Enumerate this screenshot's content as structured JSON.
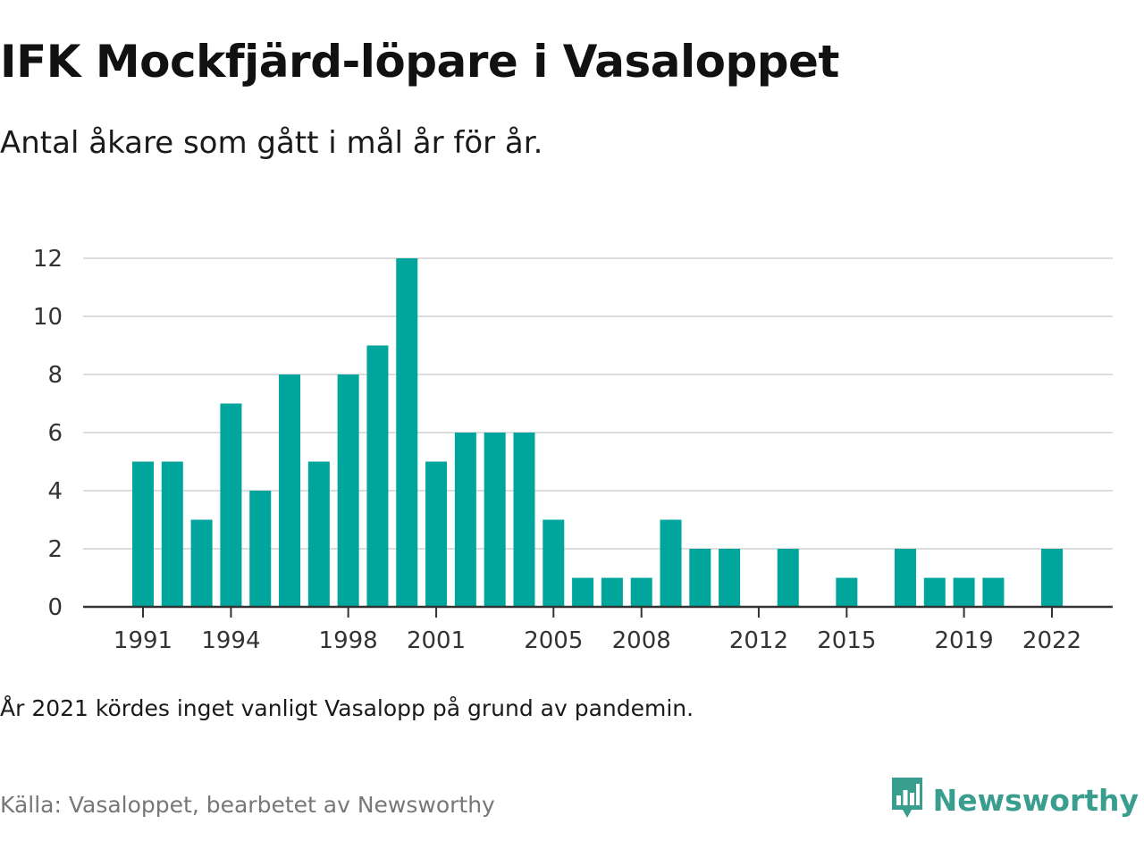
{
  "title": "IFK Mockfjärd-löpare i Vasaloppet",
  "subtitle": "Antal åkare som gått i mål år för år.",
  "note": "År 2021 kördes inget vanligt Vasalopp på grund av pandemin.",
  "source": "Källa: Vasaloppet, bearbetet av Newsworthy",
  "logo": {
    "text": "Newsworthy",
    "icon": "bar-chart-speech-bubble-icon",
    "color": "#3a9e8f"
  },
  "colors": {
    "bar": "#00a69c",
    "grid": "#dddddd",
    "axis": "#333333"
  },
  "chart_data": {
    "type": "bar",
    "x": [
      1991,
      1992,
      1993,
      1994,
      1995,
      1996,
      1997,
      1998,
      1999,
      2000,
      2001,
      2002,
      2003,
      2004,
      2005,
      2006,
      2007,
      2008,
      2009,
      2010,
      2011,
      2012,
      2013,
      2014,
      2015,
      2016,
      2017,
      2018,
      2019,
      2020,
      2021,
      2022
    ],
    "values": [
      5,
      5,
      3,
      7,
      4,
      8,
      5,
      8,
      9,
      12,
      5,
      6,
      6,
      6,
      3,
      1,
      1,
      1,
      3,
      2,
      2,
      0,
      2,
      0,
      1,
      0,
      2,
      1,
      1,
      1,
      0,
      2
    ],
    "x_ticks": [
      "1991",
      "1994",
      "1998",
      "2001",
      "2005",
      "2008",
      "2012",
      "2015",
      "2019",
      "2022"
    ],
    "y_ticks": [
      "0",
      "2",
      "4",
      "6",
      "8",
      "10",
      "12"
    ],
    "ylim": [
      0,
      12
    ],
    "grid": true,
    "legend": "none"
  }
}
